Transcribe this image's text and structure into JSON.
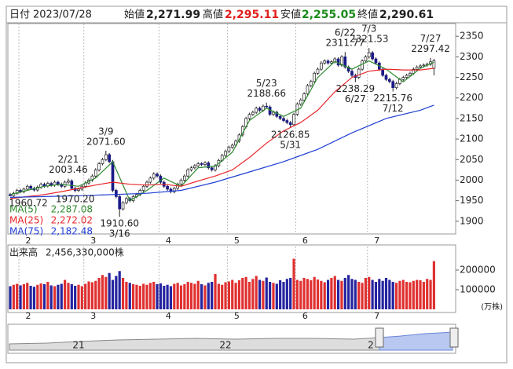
{
  "header": {
    "date_label": "日付",
    "date": "2023/07/28",
    "open_label": "始値",
    "open": "2,271.99",
    "high_label": "高値",
    "high": "2,295.11",
    "low_label": "安値",
    "low": "2,255.05",
    "close_label": "終値",
    "close": "2,290.61"
  },
  "chart_data": [
    {
      "type": "candlestick",
      "categories": [
        null,
        null,
        null,
        "2",
        null,
        null,
        null,
        null,
        null,
        null,
        null,
        null,
        null,
        null,
        null,
        null,
        null,
        null,
        null,
        null,
        null,
        null,
        "3",
        null,
        null,
        null,
        null,
        null,
        null,
        null,
        null,
        null,
        null,
        null,
        null,
        null,
        null,
        null,
        null,
        null,
        null,
        null,
        null,
        null,
        "4",
        null,
        null,
        null,
        null,
        null,
        null,
        null,
        null,
        null,
        null,
        null,
        null,
        null,
        null,
        null,
        null,
        null,
        null,
        null,
        "5",
        null,
        null,
        null,
        null,
        null,
        null,
        null,
        null,
        null,
        null,
        null,
        null,
        null,
        null,
        null,
        null,
        null,
        null,
        null,
        "6",
        null,
        null,
        null,
        null,
        null,
        null,
        null,
        null,
        null,
        null,
        null,
        null,
        null,
        null,
        null,
        null,
        null,
        null,
        null,
        null,
        "7",
        null,
        null,
        null,
        null,
        null,
        null,
        null,
        null,
        null,
        null,
        null,
        null,
        null,
        null,
        null,
        null,
        null,
        null,
        null
      ],
      "open": [
        1965,
        1962,
        1968,
        1975,
        1972,
        1978,
        1985,
        1980,
        1976,
        1983,
        1990,
        1986,
        1992,
        1988,
        1995,
        1990,
        1985,
        1995,
        1998,
        1980,
        1975,
        1978,
        1985,
        1993,
        2000,
        2010,
        2025,
        2040,
        2050,
        2062,
        2045,
        1975,
        1960,
        1930,
        1945,
        1955,
        1950,
        1960,
        1965,
        1975,
        1985,
        1995,
        2005,
        2015,
        2010,
        1995,
        1985,
        1978,
        1972,
        1980,
        1990,
        2000,
        2010,
        2025,
        2030,
        2035,
        2040,
        2038,
        2042,
        2030,
        2025,
        2035,
        2048,
        2060,
        2070,
        2080,
        2085,
        2095,
        2110,
        2130,
        2150,
        2160,
        2165,
        2175,
        2170,
        2180,
        2178,
        2160,
        2165,
        2155,
        2150,
        2145,
        2140,
        2135,
        2160,
        2185,
        2195,
        2210,
        2230,
        2240,
        2260,
        2270,
        2285,
        2290,
        2285,
        2288,
        2295,
        2280,
        2300,
        2275,
        2265,
        2255,
        2250,
        2270,
        2290,
        2300,
        2310,
        2295,
        2285,
        2270,
        2255,
        2245,
        2240,
        2225,
        2235,
        2245,
        2250,
        2255,
        2260,
        2270,
        2275,
        2278,
        2280,
        2282,
        2271.99
      ],
      "high": [
        1969,
        1972,
        1979,
        1979,
        1982,
        1989,
        1989,
        1984,
        1987,
        1994,
        1994,
        1996,
        1996,
        1999,
        1999,
        1994,
        1999,
        2003.46,
        2002,
        1984,
        1982,
        1989,
        1997,
        2004,
        2014,
        2029,
        2044,
        2054,
        2071.6,
        2066,
        2049,
        1979,
        1964,
        1949,
        1959,
        1959,
        1964,
        1969,
        1979,
        1989,
        1999,
        2009,
        2019,
        2019,
        2014,
        1999,
        1989,
        1982,
        1984,
        1994,
        2004,
        2014,
        2029,
        2034,
        2039,
        2044,
        2044,
        2046,
        2046,
        2034,
        2039,
        2052,
        2064,
        2074,
        2084,
        2089,
        2099,
        2114,
        2134,
        2154,
        2164,
        2169,
        2179,
        2179,
        2184,
        2188.66,
        2182,
        2169,
        2169,
        2159,
        2154,
        2149,
        2144,
        2164,
        2189,
        2199,
        2214,
        2234,
        2244,
        2264,
        2274,
        2289,
        2294,
        2294,
        2292,
        2299,
        2299,
        2304,
        2311.77,
        2279,
        2269,
        2259,
        2274,
        2294,
        2304,
        2321.53,
        2314,
        2299,
        2289,
        2274,
        2259,
        2249,
        2244,
        2239,
        2249,
        2254,
        2259,
        2264,
        2274,
        2279,
        2282,
        2284,
        2286,
        2297.42,
        2295.11
      ],
      "low": [
        1960.72,
        1958,
        1964,
        1968,
        1968,
        1974,
        1976,
        1972,
        1972,
        1979,
        1982,
        1982,
        1984,
        1984,
        1986,
        1981,
        1981,
        1991,
        1976,
        1970.2,
        1971,
        1974,
        1981,
        1989,
        1996,
        2006,
        2021,
        2036,
        2046,
        2041,
        1971,
        1956,
        1910.6,
        1926,
        1941,
        1946,
        1946,
        1956,
        1961,
        1971,
        1981,
        1991,
        2001,
        2006,
        1991,
        1981,
        1974,
        1968,
        1968,
        1976,
        1986,
        1996,
        2006,
        2021,
        2026,
        2031,
        2034,
        2034,
        2026,
        2021,
        2021,
        2031,
        2044,
        2056,
        2066,
        2076,
        2081,
        2091,
        2106,
        2126,
        2146,
        2156,
        2161,
        2166,
        2166,
        2174,
        2156,
        2156,
        2151,
        2146,
        2141,
        2136,
        2126.85,
        2131,
        2156,
        2181,
        2191,
        2206,
        2226,
        2236,
        2256,
        2266,
        2281,
        2281,
        2281,
        2284,
        2276,
        2276,
        2271,
        2261,
        2251,
        2238.29,
        2246,
        2266,
        2286,
        2296,
        2291,
        2281,
        2266,
        2251,
        2241,
        2236,
        2215.76,
        2221,
        2231,
        2241,
        2246,
        2251,
        2256,
        2266,
        2271,
        2274,
        2276,
        2278,
        2255.05
      ],
      "close": [
        1962,
        1968,
        1975,
        1972,
        1978,
        1985,
        1980,
        1976,
        1983,
        1990,
        1986,
        1992,
        1988,
        1995,
        1990,
        1985,
        1995,
        1998,
        1980,
        1975,
        1978,
        1985,
        1993,
        2000,
        2010,
        2025,
        2040,
        2050,
        2062,
        2045,
        1975,
        1960,
        1930,
        1945,
        1955,
        1950,
        1960,
        1965,
        1975,
        1985,
        1995,
        2005,
        2015,
        2010,
        1995,
        1985,
        1978,
        1972,
        1980,
        1990,
        2000,
        2010,
        2025,
        2030,
        2035,
        2040,
        2038,
        2042,
        2030,
        2025,
        2035,
        2048,
        2060,
        2070,
        2080,
        2085,
        2095,
        2110,
        2130,
        2150,
        2160,
        2165,
        2175,
        2170,
        2180,
        2178,
        2160,
        2165,
        2155,
        2150,
        2145,
        2140,
        2135,
        2160,
        2185,
        2195,
        2210,
        2230,
        2240,
        2260,
        2270,
        2285,
        2290,
        2285,
        2288,
        2295,
        2280,
        2300,
        2275,
        2265,
        2255,
        2250,
        2270,
        2290,
        2300,
        2310,
        2295,
        2285,
        2270,
        2255,
        2245,
        2240,
        2225,
        2235,
        2245,
        2250,
        2255,
        2260,
        2270,
        2275,
        2278,
        2280,
        2282,
        2288,
        2290.61
      ],
      "up_color": "#ffffff",
      "down_color": "#1b1b87",
      "ylim": [
        1869,
        2381
      ],
      "yticks": [
        1900,
        1950,
        2000,
        2050,
        2100,
        2150,
        2200,
        2250,
        2300,
        2350
      ],
      "moving_averages": [
        {
          "name": "MA(5)",
          "color": "#2e8b2e",
          "x": [
            0,
            5,
            10,
            15,
            20,
            25,
            30,
            35,
            40,
            45,
            50,
            55,
            60,
            65,
            70,
            75,
            80,
            85,
            90,
            95,
            100,
            105,
            110,
            115,
            120,
            124
          ],
          "values": [
            1965,
            1975,
            1985,
            1990,
            1985,
            2005,
            2045,
            1950,
            1975,
            2005,
            1985,
            2030,
            2034,
            2068,
            2145,
            2175,
            2155,
            2175,
            2250,
            2289,
            2270,
            2290,
            2270,
            2239,
            2272,
            2287.08
          ],
          "value_labels": [
            null,
            null,
            null,
            null,
            null,
            null,
            null,
            null,
            null,
            null,
            null,
            null,
            null,
            null,
            null,
            null,
            null,
            null,
            null,
            null,
            null,
            null,
            null,
            null,
            null,
            "2,287.08"
          ]
        },
        {
          "name": "MA(25)",
          "color": "#e8262b",
          "x": [
            0,
            5,
            10,
            15,
            20,
            25,
            30,
            35,
            40,
            45,
            50,
            55,
            60,
            65,
            70,
            75,
            80,
            85,
            90,
            95,
            100,
            105,
            110,
            115,
            120,
            124
          ],
          "values": [
            1955,
            1960,
            1965,
            1972,
            1980,
            1988,
            1995,
            1990,
            1988,
            1990,
            1985,
            1998,
            2010,
            2025,
            2055,
            2090,
            2120,
            2140,
            2170,
            2215,
            2250,
            2265,
            2270,
            2268,
            2268,
            2272.02
          ],
          "value_labels": [
            null,
            null,
            null,
            null,
            null,
            null,
            null,
            null,
            null,
            null,
            null,
            null,
            null,
            null,
            null,
            null,
            null,
            null,
            null,
            null,
            null,
            null,
            null,
            null,
            null,
            "2,272.02"
          ]
        },
        {
          "name": "MA(75)",
          "color": "#1f3fd4",
          "x": [
            0,
            10,
            20,
            30,
            40,
            50,
            60,
            70,
            80,
            90,
            100,
            110,
            120,
            124
          ],
          "values": [
            1958,
            1960,
            1962,
            1965,
            1968,
            1975,
            1995,
            2020,
            2045,
            2075,
            2115,
            2150,
            2170,
            2182.48
          ],
          "value_labels": [
            null,
            null,
            null,
            null,
            null,
            null,
            null,
            null,
            null,
            null,
            null,
            null,
            null,
            "2,182.48"
          ]
        }
      ],
      "annotations": [
        {
          "x": 0,
          "side": "low",
          "value": 1960.72,
          "label": "1960.72"
        },
        {
          "x": 17,
          "side": "high",
          "date": "2/21",
          "value": 2003.46,
          "label": "2003.46"
        },
        {
          "x": 19,
          "side": "low",
          "value": 1970.2,
          "label": "1970.20"
        },
        {
          "x": 28,
          "side": "high",
          "date": "3/9",
          "value": 2071.6,
          "label": "2071.60"
        },
        {
          "x": 32,
          "side": "low",
          "date": "3/16",
          "value": 1910.6,
          "label": "1910.60"
        },
        {
          "x": 75,
          "side": "high",
          "date": "5/23",
          "value": 2188.66,
          "label": "2188.66"
        },
        {
          "x": 82,
          "side": "low",
          "date": "5/31",
          "value": 2126.85,
          "label": "2126.85"
        },
        {
          "x": 98,
          "side": "high",
          "date": "6/22",
          "value": 2311.77,
          "label": "2311.77"
        },
        {
          "x": 101,
          "side": "low",
          "date": "6/27",
          "value": 2238.29,
          "label": "2238.29"
        },
        {
          "x": 105,
          "side": "high",
          "date": "7/3",
          "value": 2321.53,
          "label": "2321.53"
        },
        {
          "x": 112,
          "side": "low",
          "date": "7/12",
          "value": 2215.76,
          "label": "2215.76"
        },
        {
          "x": 123,
          "side": "high",
          "date": "7/27",
          "value": 2297.42,
          "label": "2297.42"
        }
      ]
    },
    {
      "type": "bar",
      "title": "出来高",
      "total_label": "2,456,330,000株",
      "unit": "(万株)",
      "categories": [
        null,
        null,
        null,
        "2",
        null,
        null,
        null,
        null,
        null,
        null,
        null,
        null,
        null,
        null,
        null,
        null,
        null,
        null,
        null,
        null,
        null,
        null,
        "3",
        null,
        null,
        null,
        null,
        null,
        null,
        null,
        null,
        null,
        null,
        null,
        null,
        null,
        null,
        null,
        null,
        null,
        null,
        null,
        null,
        null,
        "4",
        null,
        null,
        null,
        null,
        null,
        null,
        null,
        null,
        null,
        null,
        null,
        null,
        null,
        null,
        null,
        null,
        null,
        null,
        null,
        "5",
        null,
        null,
        null,
        null,
        null,
        null,
        null,
        null,
        null,
        null,
        null,
        null,
        null,
        null,
        null,
        null,
        null,
        null,
        null,
        "6",
        null,
        null,
        null,
        null,
        null,
        null,
        null,
        null,
        null,
        null,
        null,
        null,
        null,
        null,
        null,
        null,
        null,
        null,
        null,
        null,
        "7",
        null,
        null,
        null,
        null,
        null,
        null,
        null,
        null,
        null,
        null,
        null,
        null,
        null,
        null,
        null,
        null,
        null,
        null,
        null
      ],
      "values": [
        118000,
        125000,
        130000,
        122000,
        128000,
        135000,
        120000,
        115000,
        125000,
        132000,
        128000,
        140000,
        122000,
        118000,
        125000,
        130000,
        150000,
        135000,
        128000,
        120000,
        125000,
        118000,
        130000,
        142000,
        138000,
        145000,
        160000,
        175000,
        165000,
        185000,
        150000,
        170000,
        195000,
        160000,
        140000,
        135000,
        128000,
        125000,
        120000,
        130000,
        125000,
        135000,
        140000,
        128000,
        132000,
        120000,
        125000,
        118000,
        130000,
        135000,
        122000,
        128000,
        140000,
        135000,
        130000,
        145000,
        128000,
        122000,
        135000,
        140000,
        180000,
        130000,
        125000,
        138000,
        142000,
        150000,
        135000,
        148000,
        160000,
        165000,
        140000,
        155000,
        170000,
        150000,
        145000,
        162000,
        140000,
        135000,
        130000,
        148000,
        140000,
        155000,
        160000,
        258000,
        150000,
        145000,
        160000,
        155000,
        148000,
        165000,
        152000,
        145000,
        138000,
        150000,
        160000,
        170000,
        150000,
        145000,
        160000,
        175000,
        155000,
        150000,
        140000,
        135000,
        160000,
        165000,
        150000,
        140000,
        155000,
        145000,
        160000,
        150000,
        140000,
        135000,
        145000,
        150000,
        140000,
        138000,
        145000,
        150000,
        148000,
        140000,
        155000,
        150000,
        245633
      ],
      "up_color": "#e03030",
      "down_color": "#2424a0",
      "ylim": [
        0,
        320000
      ],
      "yticks": [
        100000,
        200000
      ]
    }
  ],
  "navigator": {
    "labels": [
      "21",
      "22",
      "2"
    ]
  }
}
